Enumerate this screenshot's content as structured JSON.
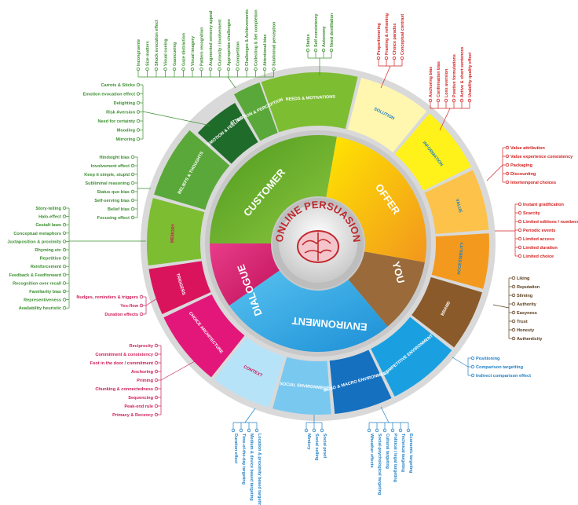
{
  "center": {
    "title": "ONLINE PERSUASION"
  },
  "inner": {
    "customer": "CUSTOMER",
    "offer": "OFFER",
    "you": "YOU",
    "environment": "ENVIRONMENT",
    "dialogue": "DIALOGUE"
  },
  "segments": {
    "needs": "NEEDS & MOTIVATIONS",
    "attention": "ATTENTION & PERCEPTION",
    "emotion": "EMOTION & FEELINGS",
    "beliefs": "BELIEFS & THOUGHTS",
    "memory": "MEMORY",
    "triggers": "TRIGGERS",
    "choice": "CHOICE ARCHITECTURE",
    "context": "CONTEXT",
    "social": "SOCIAL ENVIRONMENT",
    "meso": "MESO & MACRO ENVIRONMENT",
    "competitive": "COMPETITIVE ENVIRONMENT",
    "brand": "BRAND",
    "accessibility": "ACCESSIBILITY",
    "value": "VALUE",
    "information": "INFORMATION",
    "solution": "SOLUTION"
  },
  "colors": {
    "green": "#3a8f2e",
    "red": "#d32020",
    "orange": "#e0621a",
    "blue": "#1f7fc4",
    "magenta": "#cc1d57",
    "brown": "#5a3b1a"
  },
  "lists": {
    "attention": [
      "Incongruente",
      "Size matters",
      "Shock evocation effect",
      "Visual cueing",
      "Gazecueing",
      "Gaze distraction",
      "Visual imagery",
      "Pattern recognition",
      "Augmented sensory appeal",
      "Curiosity / involvement",
      "Appropriate challenges",
      "Competition",
      "Challenges & Achievements",
      "Collecting & Set completion",
      "Attentional bias",
      "Subliminal perception"
    ],
    "needs": [
      "Status",
      "Self consistency",
      "Autonomy",
      "Need destillation"
    ],
    "solution": [
      "Proportionering",
      "Framing & reframing",
      "Choice paradox",
      "Conceptual contrast"
    ],
    "information": [
      "Anchoring bias",
      "Confirmation bias",
      "Loss aversion",
      "Positive formulations",
      "Active & short sentences",
      "Usability quality effect"
    ],
    "value": [
      "Value attribution",
      "Value experience consistency",
      "Packaging",
      "Discounting",
      "Intertemporal choices"
    ],
    "accessibility": [
      "Instant gratification",
      "Scarcity",
      "Limited editions / numbers",
      "Periodic events",
      "Limited access",
      "Limited duration",
      "Limited choice"
    ],
    "brand": [
      "Liking",
      "Reputation",
      "Sliming",
      "Authority",
      "Easyness",
      "Trust",
      "Honesty",
      "Authenticity"
    ],
    "competitive": [
      "Positioning",
      "Comparison targetting",
      "Indirect comparison effect"
    ],
    "meso": [
      "Wheather effects",
      "Social-psychological targeting",
      "Cultural targeting",
      "Political / legal targeting",
      "Technical targeting",
      "Economic targeting"
    ],
    "social": [
      "Mimicry",
      "Social selling",
      "Social proof"
    ],
    "context": [
      "Duration effect",
      "Time-of-the-day targeting",
      "Medium & device based targeting",
      "Location & proximity based targeting"
    ],
    "choice": [
      "Reciprocity",
      "Commitment & consistency",
      "Foot in the door / commitment",
      "Anchoring",
      "Priming",
      "Chunking & connectedness",
      "Sequencing",
      "Peak-end rule",
      "Primacy & Recency"
    ],
    "triggers": [
      "Nudges, reminders & triggers",
      "Yes-flow",
      "Duration effects"
    ],
    "memory": [
      "Story-telling",
      "Halo-effect",
      "Gestalt laws",
      "Conceptual metaphors",
      "Juxtaposition & proximity",
      "Rhyming etc",
      "Repetition",
      "Reinforcement",
      "Feedback & Feedforward",
      "Recognition over recall",
      "Familiarity bias",
      "Representiveness",
      "Availability heuristic"
    ],
    "beliefs": [
      "Hindsight bias",
      "Involvement effect",
      "Keep it simple, stupid",
      "Subliminal reasoning",
      "Status quo bias",
      "Self-serving bias",
      "Belief bias",
      "Focusing effect"
    ],
    "emotion": [
      "Carrots & Sticks",
      "Emotion evocation effect",
      "Delighting",
      "Risk Aversion",
      "Need for certainty",
      "Mooding",
      "Mirroring"
    ]
  }
}
